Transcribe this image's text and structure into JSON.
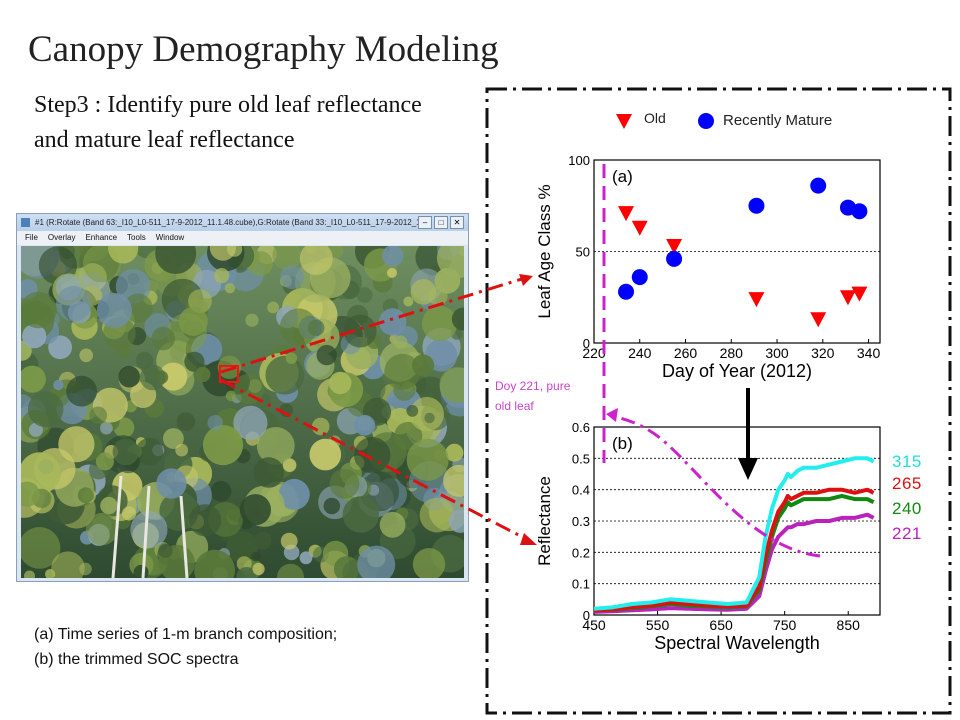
{
  "title": "Canopy Demography Modeling",
  "step_text": "Step3 : Identify pure old leaf reflectance and mature leaf reflectance",
  "caption": {
    "line1": "(a) Time series of 1-m  branch composition;",
    "line2": "(b) the trimmed SOC spectra"
  },
  "screenshot": {
    "window_title": "#1 (R:Rotate (Band 63:_I10_L0-511_17-9-2012_11.1.48.cube),G:Rotate (Band 33:_I10_L0-511_17-9-2012_11...",
    "menu": [
      "File",
      "Overlay",
      "Enhance",
      "Tools",
      "Window"
    ],
    "controls": [
      "–",
      "□",
      "✕"
    ]
  },
  "annotation": {
    "line1": "Doy 221, pure",
    "line2": "old leaf"
  },
  "colors": {
    "old": "#ff0000",
    "recently_mature": "#0000ff",
    "dashed_frame": "#111111",
    "red_arrow": "#dd1111",
    "magenta": "#cc22cc",
    "s315": "#22eeee",
    "s265": "#dd1111",
    "s240": "#118811",
    "s221": "#bb22bb"
  },
  "icons": {
    "down_arrow": "arrow-down-icon",
    "curved_arrow": "curved-arrow-icon"
  },
  "chart_data": [
    {
      "type": "scatter",
      "panel_label": "(a)",
      "xlabel": "Day of Year (2012)",
      "ylabel": "Leaf Age Class %",
      "xlim": [
        220,
        345
      ],
      "ylim": [
        0,
        100
      ],
      "xticks": [
        220,
        240,
        260,
        280,
        300,
        320,
        340
      ],
      "yticks": [
        0,
        50,
        100
      ],
      "grid": "horizontal dotted",
      "legend_position": "top",
      "series": [
        {
          "name": "Old",
          "marker": "triangle-down",
          "x": [
            234,
            240,
            255,
            291,
            318,
            331,
            336
          ],
          "y": [
            71,
            63,
            53,
            24,
            13,
            25,
            27
          ]
        },
        {
          "name": "Recently Mature",
          "marker": "circle",
          "x": [
            234,
            240,
            255,
            291,
            318,
            331,
            336
          ],
          "y": [
            28,
            36,
            46,
            75,
            86,
            74,
            72
          ]
        }
      ],
      "marker_line_x": 221
    },
    {
      "type": "line",
      "panel_label": "(b)",
      "xlabel": "Spectral Wavelength",
      "ylabel": "Reflectance",
      "xlim": [
        450,
        900
      ],
      "ylim": [
        0,
        0.6
      ],
      "xticks": [
        450,
        550,
        650,
        750,
        850
      ],
      "yticks": [
        0,
        0.1,
        0.2,
        0.3,
        0.4,
        0.5,
        0.6
      ],
      "grid": "horizontal dotted",
      "x": [
        450,
        480,
        510,
        540,
        570,
        600,
        630,
        660,
        690,
        710,
        720,
        730,
        740,
        750,
        755,
        760,
        770,
        780,
        800,
        820,
        840,
        860,
        880,
        890
      ],
      "series": [
        {
          "name": "315",
          "values": [
            0.02,
            0.025,
            0.035,
            0.04,
            0.05,
            0.045,
            0.04,
            0.035,
            0.04,
            0.12,
            0.25,
            0.34,
            0.4,
            0.43,
            0.45,
            0.44,
            0.46,
            0.47,
            0.47,
            0.48,
            0.49,
            0.5,
            0.5,
            0.49
          ]
        },
        {
          "name": "265",
          "values": [
            0.015,
            0.018,
            0.025,
            0.03,
            0.04,
            0.035,
            0.03,
            0.028,
            0.03,
            0.09,
            0.19,
            0.27,
            0.33,
            0.36,
            0.38,
            0.37,
            0.38,
            0.39,
            0.39,
            0.4,
            0.4,
            0.39,
            0.4,
            0.39
          ]
        },
        {
          "name": "240",
          "values": [
            0.015,
            0.017,
            0.022,
            0.028,
            0.035,
            0.03,
            0.027,
            0.025,
            0.028,
            0.08,
            0.17,
            0.25,
            0.31,
            0.34,
            0.36,
            0.35,
            0.36,
            0.37,
            0.37,
            0.37,
            0.38,
            0.37,
            0.37,
            0.36
          ]
        },
        {
          "name": "221",
          "values": [
            0.01,
            0.012,
            0.015,
            0.018,
            0.022,
            0.02,
            0.018,
            0.017,
            0.02,
            0.06,
            0.14,
            0.21,
            0.25,
            0.27,
            0.28,
            0.28,
            0.29,
            0.29,
            0.3,
            0.3,
            0.31,
            0.31,
            0.32,
            0.31
          ]
        }
      ]
    }
  ]
}
